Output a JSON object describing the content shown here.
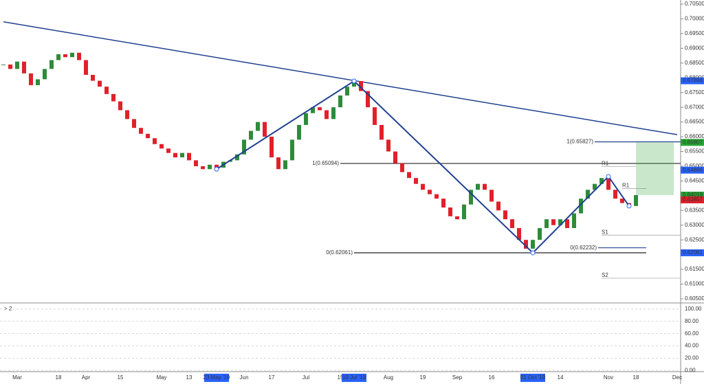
{
  "chart_data": {
    "type": "candlestick",
    "up_color": "#2e8b3a",
    "down_color": "#e0202a",
    "categories": [
      null,
      null,
      "Mar",
      null,
      null,
      null,
      null,
      null,
      "18",
      null,
      null,
      null,
      "Apr",
      null,
      null,
      null,
      null,
      "15",
      null,
      null,
      null,
      null,
      null,
      "May",
      null,
      null,
      null,
      "13",
      null,
      null,
      null,
      "23 May '19",
      null,
      null,
      null,
      "Jun",
      null,
      null,
      null,
      "17",
      null,
      null,
      null,
      null,
      "Jul",
      null,
      null,
      null,
      null,
      "15",
      null,
      "19 Jul '19",
      null,
      null,
      null,
      null,
      "Aug",
      null,
      null,
      null,
      null,
      "19",
      null,
      null,
      null,
      null,
      "Sep",
      null,
      null,
      null,
      null,
      "16",
      null,
      null,
      null,
      null,
      null,
      "01 Oct '19",
      null,
      null,
      null,
      "14",
      null,
      null,
      null,
      null,
      null,
      null,
      "Nov",
      null,
      null,
      null,
      "18",
      null,
      null,
      null,
      null,
      null,
      "Dec"
    ],
    "values": [
      0.6845,
      0.683,
      0.6855,
      0.6815,
      0.6775,
      0.6795,
      0.683,
      0.686,
      0.688,
      0.687,
      0.6885,
      0.686,
      0.681,
      0.679,
      0.677,
      0.6745,
      0.672,
      0.669,
      0.666,
      0.663,
      0.661,
      0.6595,
      0.6575,
      0.656,
      0.6545,
      0.653,
      0.6545,
      0.652,
      0.65,
      0.649,
      0.6505,
      0.6495,
      0.6515,
      0.652,
      0.654,
      0.659,
      0.662,
      0.665,
      0.66,
      0.653,
      0.649,
      0.652,
      0.659,
      0.664,
      0.668,
      0.67,
      0.669,
      0.666,
      0.67,
      0.674,
      0.677,
      0.6789,
      0.6755,
      0.67,
      0.664,
      0.659,
      0.655,
      0.651,
      0.648,
      0.646,
      0.644,
      0.642,
      0.6405,
      0.639,
      0.636,
      0.633,
      0.632,
      0.637,
      0.642,
      0.644,
      0.642,
      0.638,
      0.635,
      0.632,
      0.629,
      0.625,
      0.622,
      0.625,
      0.629,
      0.632,
      0.63,
      0.632,
      0.629,
      0.634,
      0.639,
      0.642,
      0.644,
      0.646,
      0.642,
      0.639,
      0.6375,
      0.6365,
      0.6402,
      null,
      null,
      null,
      null,
      null,
      null
    ],
    "ylim": [
      0.6036,
      0.7064
    ],
    "yticks": [
      {
        "value": 0.605,
        "label": "0.60500"
      },
      {
        "value": 0.61,
        "label": "0.61000"
      },
      {
        "value": 0.615,
        "label": "0.61500"
      },
      {
        "value": 0.62,
        "label": "0.62000"
      },
      {
        "value": 0.625,
        "label": "0.62500"
      },
      {
        "value": 0.63,
        "label": "0.63000"
      },
      {
        "value": 0.635,
        "label": "0.63500"
      },
      {
        "value": 0.64,
        "label": "0.64000"
      },
      {
        "value": 0.645,
        "label": "0.64500"
      },
      {
        "value": 0.65,
        "label": "0.65000"
      },
      {
        "value": 0.655,
        "label": "0.65500"
      },
      {
        "value": 0.66,
        "label": "0.66000"
      },
      {
        "value": 0.665,
        "label": "0.66500"
      },
      {
        "value": 0.67,
        "label": "0.67000"
      },
      {
        "value": 0.675,
        "label": "0.67500"
      },
      {
        "value": 0.68,
        "label": "0.68000"
      },
      {
        "value": 0.685,
        "label": "0.68500"
      },
      {
        "value": 0.69,
        "label": "0.69000"
      },
      {
        "value": 0.695,
        "label": "0.69500"
      },
      {
        "value": 0.7,
        "label": "0.70000"
      },
      {
        "value": 0.705,
        "label": "0.70500"
      }
    ],
    "price_tags": [
      0.67898,
      0.65807,
      0.64866,
      0.64019,
      0.63858,
      0.63857,
      0.62061
    ],
    "price_tag_colors": [
      "#2962ff",
      "#26a634",
      "#2962ff",
      "#26a634",
      "#333333",
      "#e0202a",
      "#2962ff"
    ],
    "fib_levels": [
      {
        "value": 0.65827,
        "label": "1(0.65827)"
      },
      {
        "value": 0.65094,
        "label": "1(0.65094)"
      },
      {
        "value": 0.62232,
        "label": "0(0.62232)"
      },
      {
        "value": 0.62061,
        "label": "0(0.62061)"
      }
    ],
    "pivots": [
      {
        "name": "R1",
        "value": 0.6499
      },
      {
        "name": "R1",
        "value": 0.6424
      },
      {
        "name": "S1",
        "value": 0.6266
      },
      {
        "name": "S2",
        "value": 0.612
      }
    ],
    "trendline": [
      [
        0,
        0.699
      ],
      [
        98,
        0.6607
      ]
    ],
    "zigzag": [
      [
        31,
        0.649
      ],
      [
        51,
        0.6789
      ],
      [
        77,
        0.6206
      ],
      [
        88,
        0.6465
      ],
      [
        91,
        0.6365
      ]
    ],
    "oscillator": {
      "label": "> 2",
      "ylim": [
        -2,
        110
      ],
      "yticks": [
        {
          "value": 0,
          "label": "0.00"
        },
        {
          "value": 20,
          "label": "20.00"
        },
        {
          "value": 40,
          "label": "40.00"
        },
        {
          "value": 60,
          "label": "60.00"
        },
        {
          "value": 80,
          "label": "80.00"
        },
        {
          "value": 100,
          "label": "100.00"
        }
      ]
    }
  }
}
